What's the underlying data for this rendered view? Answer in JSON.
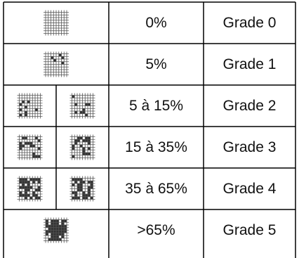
{
  "table": {
    "rows": [
      [
        "0%",
        "Grade 0"
      ],
      [
        "5%",
        "Grade 1"
      ],
      [
        "5 à 15%",
        "Grade 2"
      ],
      [
        "15 à 35%",
        "Grade 3"
      ],
      [
        "35 à 65%",
        "Grade 4"
      ],
      [
        ">65%",
        "Grade 5"
      ]
    ]
  }
}
